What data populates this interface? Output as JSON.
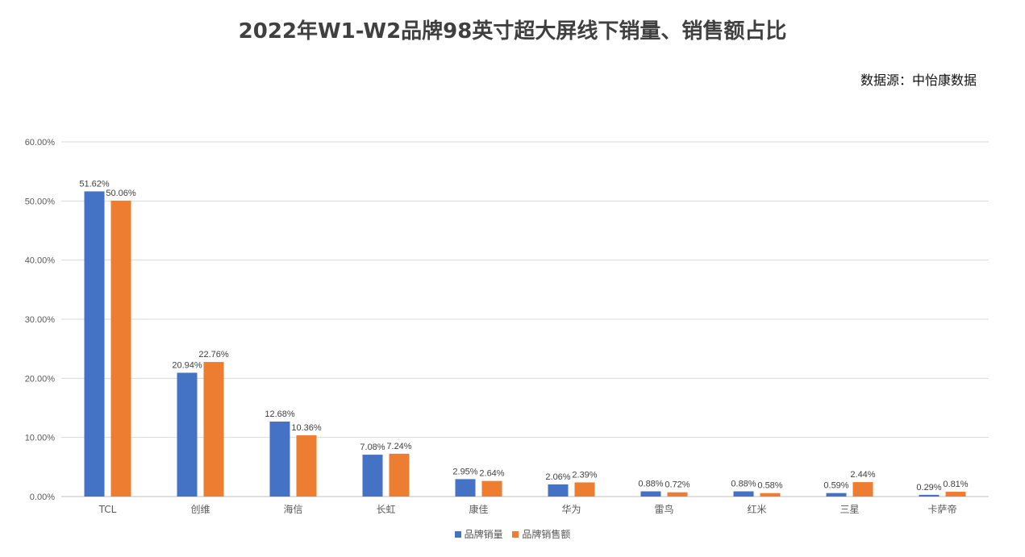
{
  "title": "2022年W1-W2品牌98英寸超大屏线下销量、销售额占比",
  "source": "数据源：中怡康数据",
  "colors": {
    "series1": "#4472C4",
    "series2": "#ED7D31",
    "grid": "#D9D9D9",
    "axis": "#BFBFBF"
  },
  "chart_data": {
    "type": "bar",
    "title": "2022年W1-W2品牌98英寸超大屏线下销量、销售额占比",
    "categories": [
      "TCL",
      "创维",
      "海信",
      "长虹",
      "康佳",
      "华为",
      "雷鸟",
      "红米",
      "三星",
      "卡萨帝"
    ],
    "series": [
      {
        "name": "品牌销量",
        "values": [
          51.62,
          20.94,
          12.68,
          7.08,
          2.95,
          2.06,
          0.88,
          0.88,
          0.59,
          0.29
        ],
        "labels": [
          "51.62%",
          "20.94%",
          "12.68%",
          "7.08%",
          "2.95%",
          "2.06%",
          "0.88%",
          "0.88%",
          "0.59%",
          "0.29%"
        ]
      },
      {
        "name": "品牌销售额",
        "values": [
          50.06,
          22.76,
          10.36,
          7.24,
          2.64,
          2.39,
          0.72,
          0.58,
          2.44,
          0.81
        ],
        "labels": [
          "50.06%",
          "22.76%",
          "10.36%",
          "7.24%",
          "2.64%",
          "2.39%",
          "0.72%",
          "0.58%",
          "2.44%",
          "0.81%"
        ]
      }
    ],
    "ylim": [
      0,
      60
    ],
    "yticks": [
      0,
      10,
      20,
      30,
      40,
      50,
      60
    ],
    "ytick_labels": [
      "0.00%",
      "10.00%",
      "20.00%",
      "30.00%",
      "40.00%",
      "50.00%",
      "60.00%"
    ],
    "grid": true,
    "legend": "bottom"
  }
}
